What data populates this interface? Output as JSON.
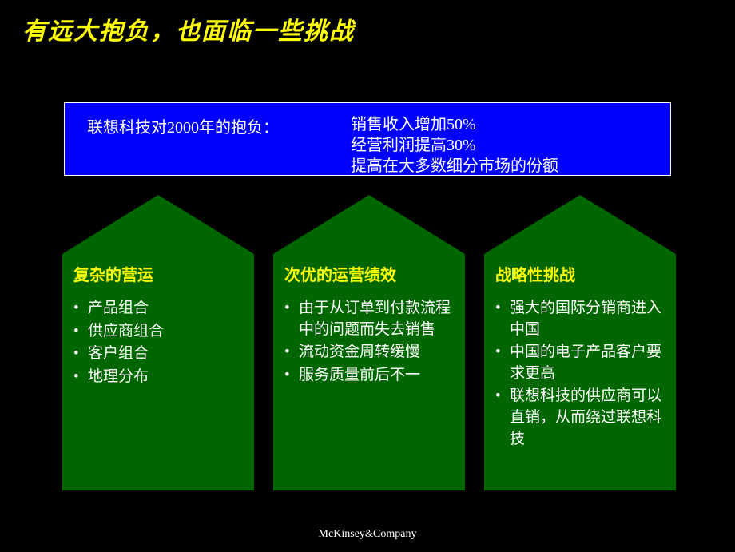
{
  "colors": {
    "background": "#000000",
    "title": "#ffff00",
    "blue_box_bg": "#0000ff",
    "blue_box_text": "#ffffff",
    "house_bg": "#006600",
    "col_title": "#ffff00",
    "col_text": "#ffffff",
    "footer_text": "#ffffff"
  },
  "title": "有远大抱负，也面临一些挑战",
  "blue_box": {
    "left_label": "联想科技对2000年的抱负：",
    "goals": [
      "销售收入增加50%",
      "经营利润提高30%",
      "提高在大多数细分市场的份额"
    ]
  },
  "columns": [
    {
      "title": "复杂的营运",
      "items": [
        "产品组合",
        "供应商组合",
        "客户组合",
        "地理分布"
      ]
    },
    {
      "title": "次优的运营绩效",
      "items": [
        "由于从订单到付款流程中的问题而失去销售",
        "流动资金周转缓慢",
        "服务质量前后不一"
      ]
    },
    {
      "title": "战略性挑战",
      "items": [
        "强大的国际分销商进入中国",
        "中国的电子产品客户要求更高",
        "联想科技的供应商可以直销，从而绕过联想科技"
      ]
    }
  ],
  "footer": {
    "company": "McKinsey",
    "amp": "&",
    "company2": "Company"
  }
}
